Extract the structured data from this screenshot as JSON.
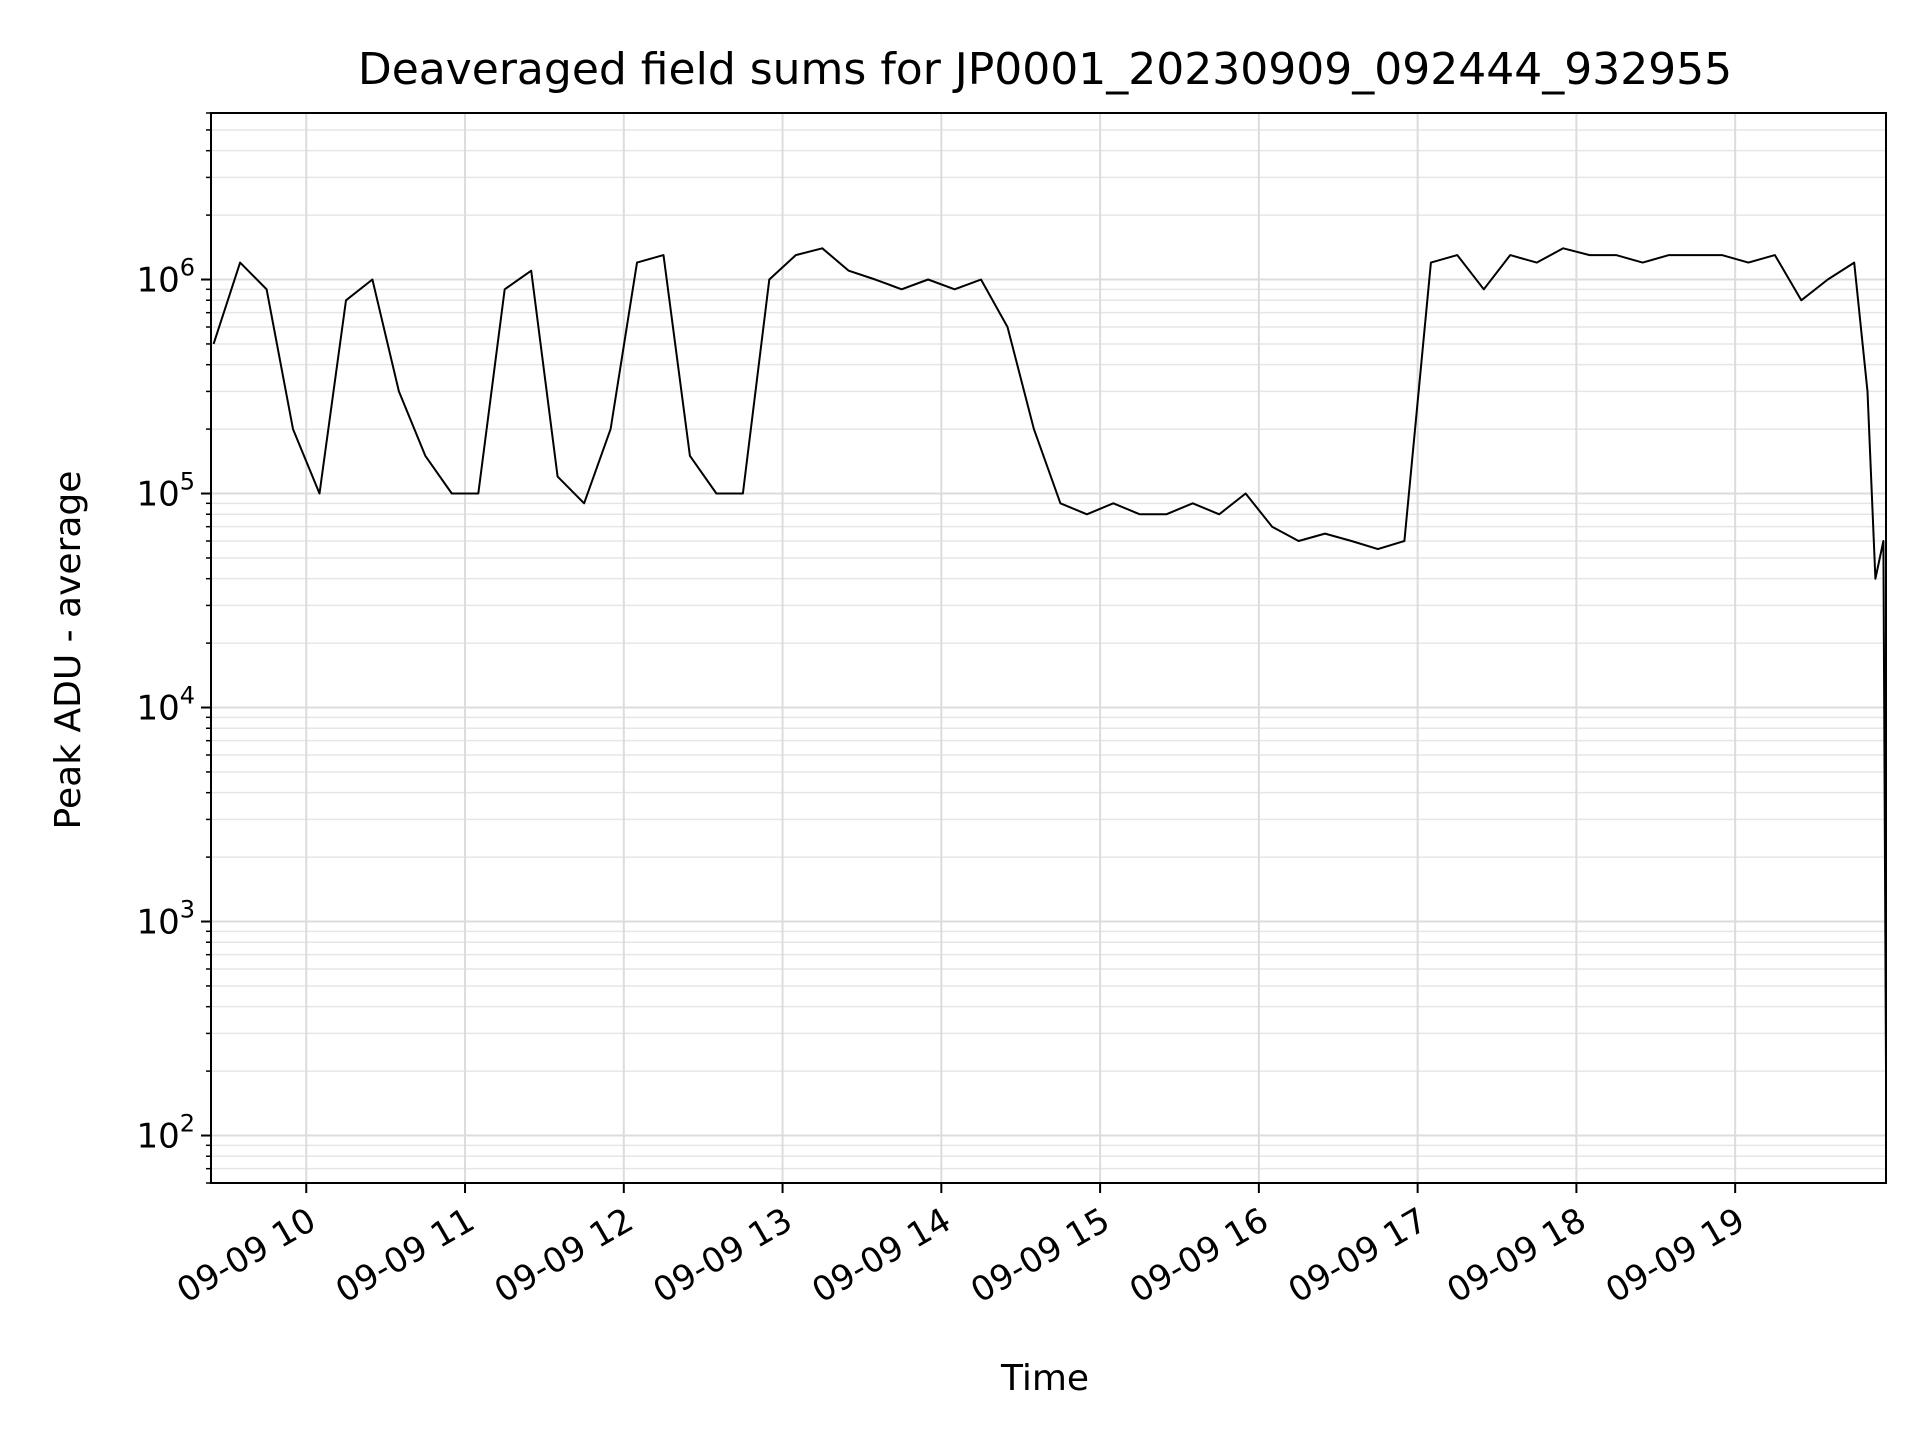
{
  "chart_data": {
    "type": "line",
    "title": "Deaveraged field sums for JP0001_20230909_092444_932955",
    "xlabel": "Time",
    "ylabel": "Peak ADU - average",
    "yscale": "log",
    "xlim": [
      "09-09 09:24",
      "09-09 19:57"
    ],
    "ylim": [
      60,
      6000000
    ],
    "x_ticks": [
      "09-09 10",
      "09-09 11",
      "09-09 12",
      "09-09 13",
      "09-09 14",
      "09-09 15",
      "09-09 16",
      "09-09 17",
      "09-09 18",
      "09-09 19"
    ],
    "y_ticks": [
      {
        "base": "10",
        "exp": "2"
      },
      {
        "base": "10",
        "exp": "3"
      },
      {
        "base": "10",
        "exp": "4"
      },
      {
        "base": "10",
        "exp": "5"
      },
      {
        "base": "10",
        "exp": "6"
      }
    ],
    "grid": true,
    "line_color": "#000000",
    "series": [
      {
        "x": [
          "09-09 09:25",
          "09-09 09:35",
          "09-09 09:45",
          "09-09 09:55",
          "09-09 10:05",
          "09-09 10:15",
          "09-09 10:25",
          "09-09 10:35",
          "09-09 10:45",
          "09-09 10:55",
          "09-09 11:05",
          "09-09 11:15",
          "09-09 11:25",
          "09-09 11:35",
          "09-09 11:45",
          "09-09 11:55",
          "09-09 12:05",
          "09-09 12:15",
          "09-09 12:25",
          "09-09 12:35",
          "09-09 12:45",
          "09-09 12:55",
          "09-09 13:05",
          "09-09 13:15",
          "09-09 13:25",
          "09-09 13:35",
          "09-09 13:45",
          "09-09 13:55",
          "09-09 14:05",
          "09-09 14:15",
          "09-09 14:25",
          "09-09 14:35",
          "09-09 14:45",
          "09-09 14:55",
          "09-09 15:05",
          "09-09 15:15",
          "09-09 15:25",
          "09-09 15:35",
          "09-09 15:45",
          "09-09 15:55",
          "09-09 16:05",
          "09-09 16:15",
          "09-09 16:25",
          "09-09 16:35",
          "09-09 16:45",
          "09-09 16:55",
          "09-09 17:05",
          "09-09 17:15",
          "09-09 17:25",
          "09-09 17:35",
          "09-09 17:45",
          "09-09 17:55",
          "09-09 18:05",
          "09-09 18:15",
          "09-09 18:25",
          "09-09 18:35",
          "09-09 18:45",
          "09-09 18:55",
          "09-09 19:05",
          "09-09 19:15",
          "09-09 19:25",
          "09-09 19:35",
          "09-09 19:45",
          "09-09 19:50",
          "09-09 19:53",
          "09-09 19:56",
          "09-09 19:57"
        ],
        "y": [
          500000,
          1200000,
          900000,
          200000,
          100000,
          800000,
          1000000,
          300000,
          150000,
          100000,
          100000,
          900000,
          1100000,
          120000,
          90000,
          200000,
          1200000,
          1300000,
          150000,
          100000,
          100000,
          1000000,
          1300000,
          1400000,
          1100000,
          1000000,
          900000,
          1000000,
          900000,
          1000000,
          600000,
          200000,
          90000,
          80000,
          90000,
          80000,
          80000,
          90000,
          80000,
          100000,
          70000,
          60000,
          65000,
          60000,
          55000,
          60000,
          1200000,
          1300000,
          900000,
          1300000,
          1200000,
          1400000,
          1300000,
          1300000,
          1200000,
          1300000,
          1300000,
          1300000,
          1200000,
          1300000,
          800000,
          1000000,
          1200000,
          300000,
          40000,
          60000,
          200
        ]
      }
    ]
  }
}
